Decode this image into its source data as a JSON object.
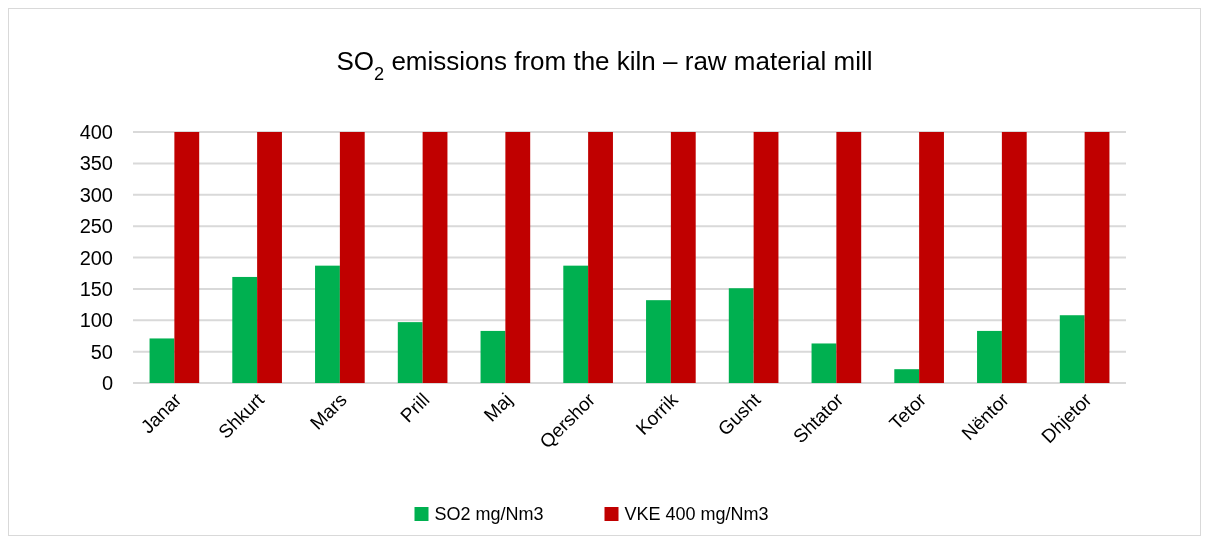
{
  "chart_data": {
    "type": "bar",
    "title": "SO$_{2}$ emissions from the kiln – raw material mill",
    "categories": [
      "Janar",
      "Shkurt",
      "Mars",
      "Prill",
      "Maj",
      "Qershor",
      "Korrik",
      "Gusht",
      "Shtator",
      "Tetor",
      "Nëntor",
      "Dhjetor"
    ],
    "series": [
      {
        "name": "SO2 mg/Nm3",
        "color": "#00b050",
        "values": [
          71,
          169,
          187,
          97,
          83,
          187,
          132,
          151,
          63,
          22,
          83,
          108
        ]
      },
      {
        "name": "VKE 400 mg/Nm3",
        "color": "#c00000",
        "values": [
          400,
          400,
          400,
          400,
          400,
          400,
          400,
          400,
          400,
          400,
          400,
          400
        ]
      }
    ],
    "ylim": [
      0,
      400
    ],
    "yticks": [
      0,
      50,
      100,
      150,
      200,
      250,
      300,
      350,
      400
    ],
    "grid": "y",
    "legend": "bottom"
  }
}
